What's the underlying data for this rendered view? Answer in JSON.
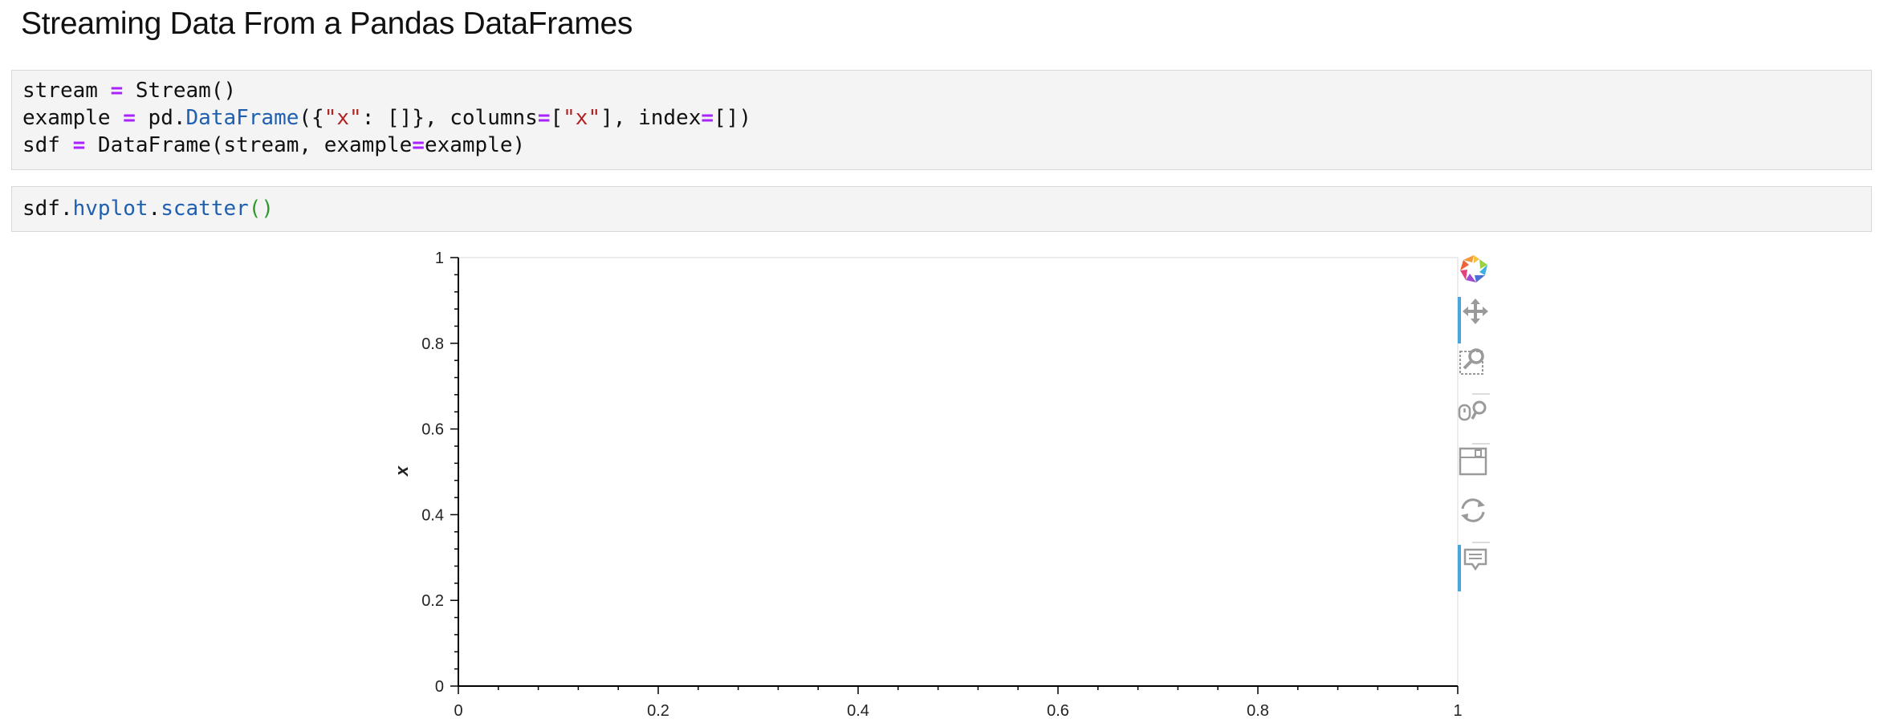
{
  "heading": "Streaming Data From a Pandas DataFrames",
  "cell1": {
    "line1": {
      "a": "stream ",
      "op": "=",
      "b": " Stream()"
    },
    "line2": {
      "a": "example ",
      "op": "=",
      "b": " pd.",
      "attr": "DataFrame",
      "c": "({",
      "s1": "\"x\"",
      "d": ": []}, columns",
      "op2": "=",
      "e": "[",
      "s2": "\"x\"",
      "f": "], index",
      "op3": "=",
      "g": "[])"
    },
    "line3": {
      "a": "sdf ",
      "op": "=",
      "b": " DataFrame(stream, example",
      "op2": "=",
      "c": "example)"
    }
  },
  "cell2": {
    "a": "sdf.",
    "attr1": "hvplot",
    "dot": ".",
    "attr2": "scatter",
    "paren": "()"
  },
  "chart_data": {
    "type": "scatter",
    "x": [],
    "y": [],
    "xlim": [
      0,
      1
    ],
    "ylim": [
      0,
      1
    ],
    "xticks": [
      "0",
      "0.2",
      "0.4",
      "0.6",
      "0.8",
      "1"
    ],
    "yticks": [
      "0",
      "0.2",
      "0.4",
      "0.6",
      "0.8",
      "1"
    ],
    "xlabel": "",
    "ylabel": "x",
    "grid": false
  },
  "toolbar": {
    "tools": [
      "bokeh-logo-icon",
      "pan-icon",
      "box-zoom-icon",
      "wheel-zoom-icon",
      "save-icon",
      "reset-icon",
      "hover-icon"
    ],
    "accent": "#4aa6d9"
  }
}
